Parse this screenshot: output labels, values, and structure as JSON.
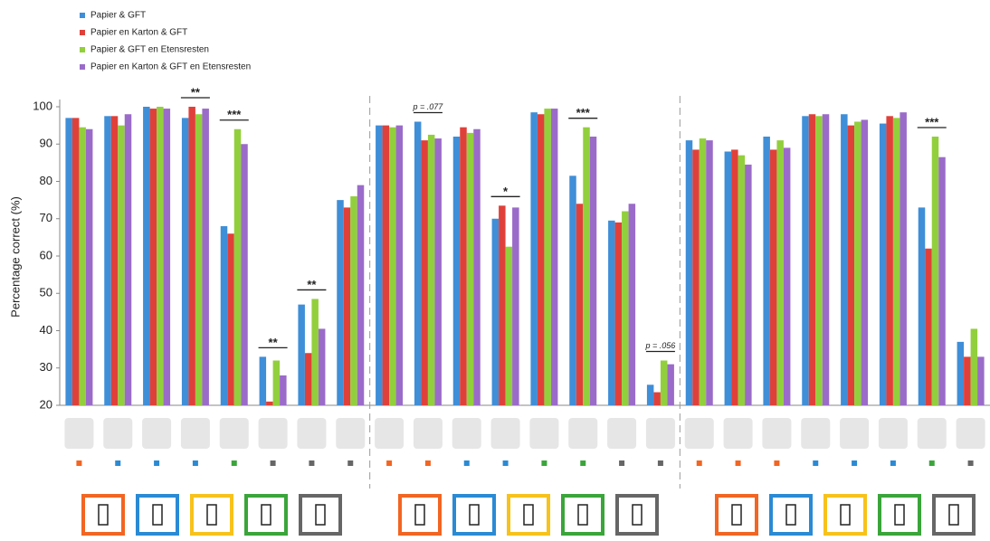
{
  "chart_data": {
    "type": "bar",
    "ylabel": "Percentage correct (%)",
    "categories": [
      null,
      null,
      null,
      null,
      null,
      null,
      null,
      null,
      null,
      null,
      null,
      null,
      null,
      null,
      null,
      null,
      null,
      null,
      null,
      null,
      null,
      null,
      null,
      null
    ],
    "series": [
      {
        "name": "Papier & GFT",
        "color": "#3f8ed8",
        "values": [
          97,
          97.5,
          100,
          97,
          68,
          33,
          47,
          75,
          95,
          96,
          92,
          70,
          98.5,
          81.5,
          69.5,
          25.5,
          91,
          88,
          92,
          97.5,
          98,
          95.5,
          73,
          37
        ]
      },
      {
        "name": "Papier en Karton & GFT",
        "color": "#e0403a",
        "values": [
          97,
          97.5,
          99.5,
          100,
          66,
          21,
          34,
          73,
          95,
          91,
          94.5,
          73.5,
          98,
          74,
          69,
          23.5,
          88.5,
          88.5,
          88.5,
          98,
          95,
          97.5,
          62,
          33
        ]
      },
      {
        "name": "Papier & GFT en Etensresten",
        "color": "#92cf3c",
        "values": [
          94.5,
          95,
          100,
          98,
          94,
          32,
          48.5,
          76,
          94.5,
          92.5,
          93,
          62.5,
          99.5,
          94.5,
          72,
          32,
          91.5,
          87,
          91,
          97.5,
          96,
          97,
          92,
          40.5
        ]
      },
      {
        "name": "Papier en Karton & GFT en Etensresten",
        "color": "#9b6bc9",
        "values": [
          94,
          98,
          99.5,
          99.5,
          90,
          28,
          40.5,
          79,
          95,
          91.5,
          94,
          73,
          99.5,
          92,
          74,
          31,
          91,
          84.5,
          89,
          98,
          96.5,
          98.5,
          86.5,
          33
        ]
      }
    ],
    "annotations": [
      null,
      null,
      null,
      "**",
      "***",
      "**",
      "**",
      null,
      null,
      "p = .077",
      null,
      "*",
      null,
      "***",
      null,
      "p = .056",
      null,
      null,
      null,
      null,
      null,
      null,
      "***",
      null
    ],
    "ylim": [
      20,
      100
    ],
    "yticks": [
      20,
      30,
      40,
      50,
      60,
      70,
      80,
      90,
      100
    ],
    "grid": false
  }
}
